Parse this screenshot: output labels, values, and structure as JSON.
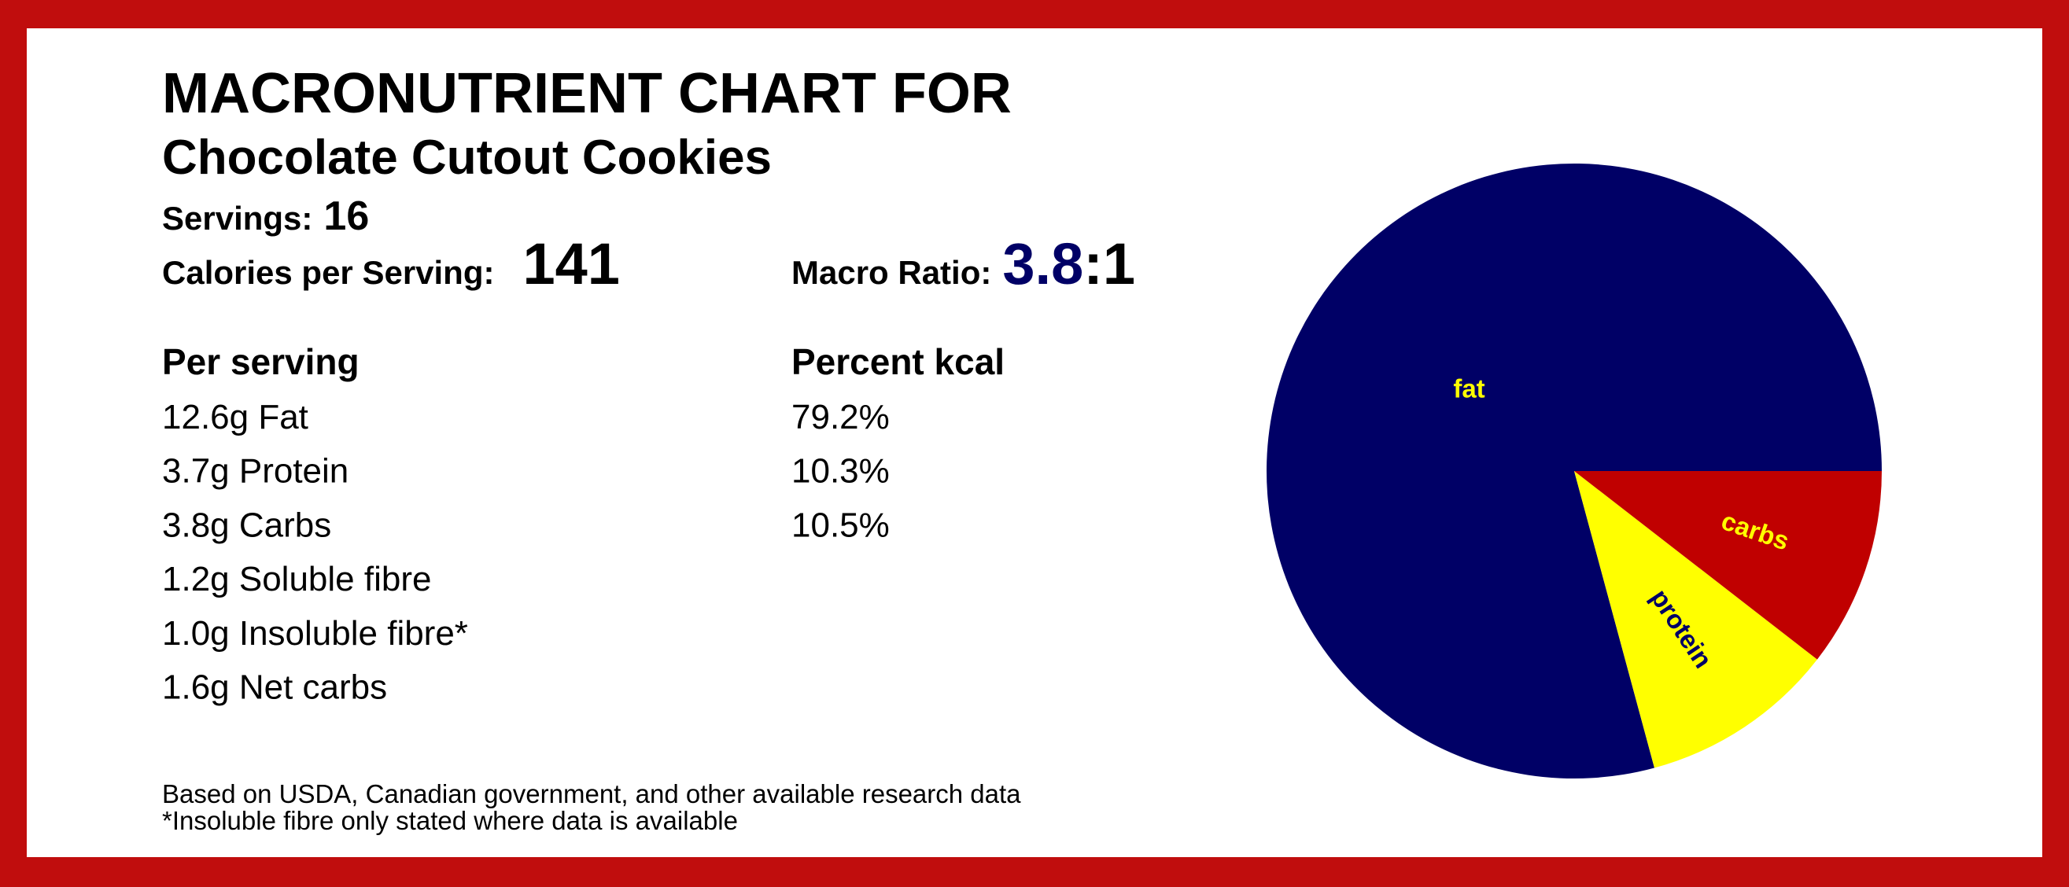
{
  "header": {
    "title": "MACRONUTRIENT CHART FOR",
    "subtitle": "Chocolate Cutout Cookies"
  },
  "summary": {
    "servings_label": "Servings:",
    "servings": "16",
    "calories_label": "Calories per Serving:",
    "calories": "141",
    "ratio_label": "Macro Ratio:",
    "ratio": "3.8",
    "ratio_suffix": ":1"
  },
  "per_serving": {
    "heading": "Per serving",
    "rows": [
      "12.6g Fat",
      "3.7g Protein",
      "3.8g Carbs",
      "1.2g Soluble fibre",
      "1.0g Insoluble fibre*",
      "1.6g Net carbs"
    ]
  },
  "percent_kcal": {
    "heading": "Percent kcal",
    "rows": [
      "79.2%",
      "10.3%",
      "10.5%"
    ]
  },
  "footnotes": [
    "Based on USDA, Canadian government, and other available research data",
    "*Insoluble fibre only stated where data is available"
  ],
  "chart_data": {
    "type": "pie",
    "categories": [
      "fat",
      "protein",
      "carbs"
    ],
    "values": [
      79.2,
      10.3,
      10.5
    ],
    "colors": [
      "#000066",
      "#ffff00",
      "#c00000"
    ],
    "label_colors": [
      "#ffff00",
      "#000066",
      "#ffff00"
    ]
  }
}
